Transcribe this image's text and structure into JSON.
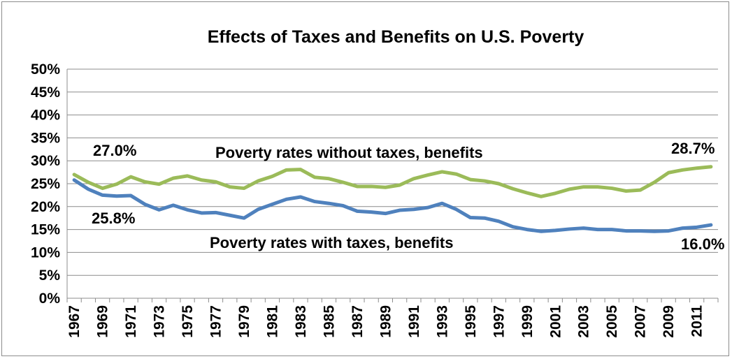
{
  "chart_data": {
    "type": "line",
    "title": "Effects of Taxes and Benefits on U.S. Poverty",
    "xlabel": "",
    "ylabel": "",
    "ylim": [
      0,
      50
    ],
    "y_ticks": [
      "0%",
      "5%",
      "10%",
      "15%",
      "20%",
      "25%",
      "30%",
      "35%",
      "40%",
      "45%",
      "50%"
    ],
    "x_tick_labels": [
      "1967",
      "1969",
      "1971",
      "1973",
      "1975",
      "1977",
      "1979",
      "1981",
      "1983",
      "1985",
      "1987",
      "1989",
      "1991",
      "1993",
      "1995",
      "1997",
      "1999",
      "2001",
      "2003",
      "2005",
      "2007",
      "2009",
      "2011"
    ],
    "grid": true,
    "legend": "none",
    "x": [
      1967,
      1968,
      1969,
      1970,
      1971,
      1972,
      1973,
      1974,
      1975,
      1976,
      1977,
      1978,
      1979,
      1980,
      1981,
      1982,
      1983,
      1984,
      1985,
      1986,
      1987,
      1988,
      1989,
      1990,
      1991,
      1992,
      1993,
      1994,
      1995,
      1996,
      1997,
      1998,
      1999,
      2000,
      2001,
      2002,
      2003,
      2004,
      2005,
      2006,
      2007,
      2008,
      2009,
      2010,
      2011,
      2012
    ],
    "series": [
      {
        "color": "#9bbb59",
        "values": [
          27.0,
          25.3,
          24.0,
          24.9,
          26.5,
          25.4,
          24.9,
          26.2,
          26.7,
          25.8,
          25.4,
          24.3,
          24.0,
          25.6,
          26.6,
          28.0,
          28.1,
          26.4,
          26.1,
          25.3,
          24.4,
          24.4,
          24.2,
          24.7,
          26.1,
          26.9,
          27.6,
          27.1,
          25.9,
          25.6,
          25.0,
          23.9,
          23.0,
          22.2,
          22.9,
          23.8,
          24.3,
          24.3,
          24.0,
          23.4,
          23.6,
          25.3,
          27.4,
          28.0,
          28.4,
          28.7
        ]
      },
      {
        "color": "#4f81bd",
        "values": [
          25.8,
          23.8,
          22.5,
          22.3,
          22.4,
          20.5,
          19.3,
          20.3,
          19.3,
          18.6,
          18.7,
          18.1,
          17.5,
          19.4,
          20.5,
          21.6,
          22.1,
          21.1,
          20.7,
          20.2,
          19.0,
          18.8,
          18.5,
          19.2,
          19.4,
          19.8,
          20.7,
          19.4,
          17.6,
          17.5,
          16.8,
          15.6,
          15.0,
          14.6,
          14.8,
          15.1,
          15.3,
          15.0,
          15.0,
          14.7,
          14.7,
          14.6,
          14.7,
          15.3,
          15.5,
          16.0
        ]
      }
    ],
    "annotations": [
      {
        "text": "Poverty rates without taxes, benefits"
      },
      {
        "text": "Poverty rates with taxes, benefits"
      },
      {
        "text": "27.0%"
      },
      {
        "text": "25.8%"
      },
      {
        "text": "28.7%"
      },
      {
        "text": "16.0%"
      }
    ]
  }
}
